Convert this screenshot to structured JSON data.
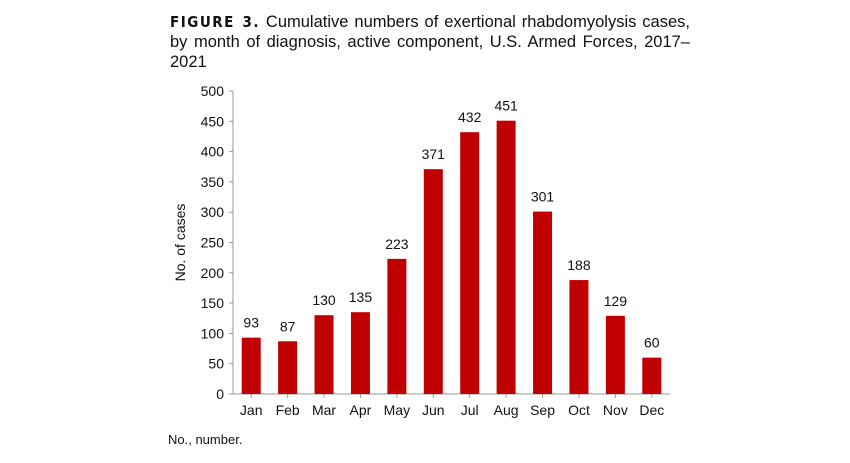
{
  "title": {
    "label": "FIGURE 3.",
    "text": "Cumulative numbers of exertional rhabdomyolysis cases, by month of diagnosis, active component, U.S. Armed Forces, 2017–2021"
  },
  "footnote": "No., number.",
  "chart_data": {
    "type": "bar",
    "categories": [
      "Jan",
      "Feb",
      "Mar",
      "Apr",
      "May",
      "Jun",
      "Jul",
      "Aug",
      "Sep",
      "Oct",
      "Nov",
      "Dec"
    ],
    "values": [
      93,
      87,
      130,
      135,
      223,
      371,
      432,
      451,
      301,
      188,
      129,
      60
    ],
    "xlabel": "",
    "ylabel": "No. of cases",
    "ylim": [
      0,
      500
    ],
    "yticks": [
      0,
      50,
      100,
      150,
      200,
      250,
      300,
      350,
      400,
      450,
      500
    ],
    "grid": false,
    "bar_color": "#c00000",
    "data_labels": true
  }
}
